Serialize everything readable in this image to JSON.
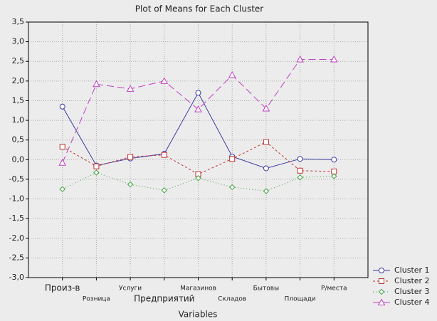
{
  "chart_data": {
    "type": "line",
    "title": "Plot of Means for Each Cluster",
    "x_label": "Variables",
    "categories": [
      "Произ-в",
      "Розница",
      "Услуги",
      "Предприятий",
      "Магазинов",
      "Складов",
      "Бытовы",
      "Площади",
      "Р/места"
    ],
    "series": [
      {
        "name": "Cluster 1",
        "color": "#3a3aa0",
        "marker": "circle",
        "dash": "none",
        "values": [
          1.35,
          -0.15,
          0.03,
          0.15,
          1.7,
          0.08,
          -0.22,
          0.02,
          0.0
        ]
      },
      {
        "name": "Cluster 2",
        "color": "#c03030",
        "marker": "square",
        "dash": "3,3",
        "values": [
          0.33,
          -0.17,
          0.07,
          0.12,
          -0.37,
          0.02,
          0.45,
          -0.28,
          -0.3
        ]
      },
      {
        "name": "Cluster 3",
        "color": "#40a040",
        "marker": "diamond",
        "dash": "1,3",
        "values": [
          -0.75,
          -0.33,
          -0.63,
          -0.78,
          -0.47,
          -0.7,
          -0.8,
          -0.45,
          -0.42
        ]
      },
      {
        "name": "Cluster 4",
        "color": "#c040c0",
        "marker": "triangle",
        "dash": "10,5",
        "values": [
          -0.08,
          1.92,
          1.8,
          2.0,
          1.28,
          2.15,
          1.3,
          2.55,
          2.55
        ]
      }
    ],
    "ylim": [
      -3.0,
      3.5
    ],
    "yticks": [
      {
        "value": -3.0,
        "label": "-3,0"
      },
      {
        "value": -2.5,
        "label": "-2,5"
      },
      {
        "value": -2.0,
        "label": "-2,0"
      },
      {
        "value": -1.5,
        "label": "-1,5"
      },
      {
        "value": -1.0,
        "label": "-1,0"
      },
      {
        "value": -0.5,
        "label": "-0,5"
      },
      {
        "value": 0.0,
        "label": "0,0"
      },
      {
        "value": 0.5,
        "label": "0,5"
      },
      {
        "value": 1.0,
        "label": "1,0"
      },
      {
        "value": 1.5,
        "label": "1,5"
      },
      {
        "value": 2.0,
        "label": "2,0"
      },
      {
        "value": 2.5,
        "label": "2,5"
      },
      {
        "value": 3.0,
        "label": "3,0"
      },
      {
        "value": 3.5,
        "label": "3,5"
      }
    ],
    "grid": true,
    "legend": "bottom-right"
  }
}
